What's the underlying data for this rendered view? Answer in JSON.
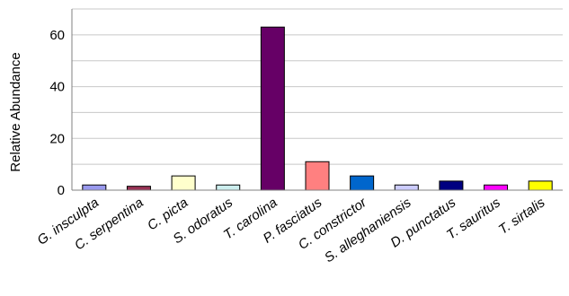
{
  "chart_data": {
    "type": "bar",
    "title": "",
    "xlabel": "",
    "ylabel": "Relative Abundance",
    "ylim": [
      0,
      70
    ],
    "yticks": [
      0,
      20,
      40,
      60
    ],
    "grid": true,
    "categories": [
      "G. insculpta",
      "C. serpentina",
      "C. picta",
      "S. odoratus",
      "T. carolina",
      "P. fasciatus",
      "C. constrictor",
      "S. alleghaniensis",
      "D. punctatus",
      "T. sauritus",
      "T. sirtalis"
    ],
    "values": [
      2,
      1.5,
      5.5,
      2,
      63,
      11,
      5.5,
      2,
      3.5,
      2,
      3.5
    ],
    "colors": [
      "#9999ee",
      "#993355",
      "#ffffcc",
      "#cceeee",
      "#660066",
      "#ff8080",
      "#0066cc",
      "#ccccff",
      "#000080",
      "#ff00ff",
      "#ffff00"
    ]
  }
}
